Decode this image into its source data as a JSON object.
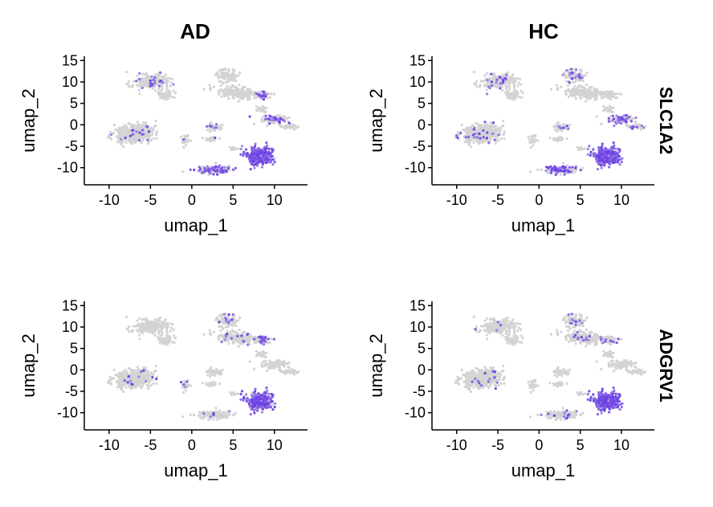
{
  "figure": {
    "columns": [
      "AD",
      "HC"
    ],
    "rows": [
      "SLC1A2",
      "ADGRV1"
    ]
  },
  "chart_data": {
    "type": "scatter",
    "xlabel": "umap_1",
    "ylabel": "umap_2",
    "xlim": [
      -13,
      14
    ],
    "ylim": [
      -14,
      16
    ],
    "xticks": [
      -10,
      -5,
      0,
      5,
      10
    ],
    "yticks": [
      -10,
      -5,
      0,
      5,
      10,
      15
    ],
    "colors": {
      "background": "#d3d3d3",
      "low": "#c4b8ea",
      "high": "#6a3ee3"
    },
    "clusters": [
      {
        "name": "c1",
        "cx": -7.0,
        "cy": -2.0,
        "sx": 2.2,
        "sy": 1.8,
        "rot": 38,
        "n": 420
      },
      {
        "name": "c2",
        "cx": -5.0,
        "cy": 10.0,
        "sx": 1.9,
        "sy": 1.6,
        "rot": 0,
        "n": 220
      },
      {
        "name": "c3",
        "cx": -3.2,
        "cy": 7.0,
        "sx": 0.9,
        "sy": 0.9,
        "rot": 0,
        "n": 60
      },
      {
        "name": "c4",
        "cx": 4.3,
        "cy": 11.5,
        "sx": 1.3,
        "sy": 1.3,
        "rot": 0,
        "n": 100
      },
      {
        "name": "c5",
        "cx": 5.5,
        "cy": 7.5,
        "sx": 2.5,
        "sy": 1.2,
        "rot": -15,
        "n": 200
      },
      {
        "name": "c6",
        "cx": 8.5,
        "cy": 7.0,
        "sx": 1.0,
        "sy": 0.8,
        "rot": 0,
        "n": 50
      },
      {
        "name": "c7",
        "cx": 10.0,
        "cy": 1.2,
        "sx": 1.6,
        "sy": 1.0,
        "rot": 0,
        "n": 90
      },
      {
        "name": "c8",
        "cx": 11.7,
        "cy": -0.5,
        "sx": 1.1,
        "sy": 0.4,
        "rot": 0,
        "n": 35
      },
      {
        "name": "c9",
        "cx": 8.5,
        "cy": 3.5,
        "sx": 0.9,
        "sy": 0.6,
        "rot": 0,
        "n": 30
      },
      {
        "name": "c10",
        "cx": 2.8,
        "cy": -0.5,
        "sx": 0.9,
        "sy": 0.8,
        "rot": 0,
        "n": 45
      },
      {
        "name": "c11",
        "cx": 2.5,
        "cy": -3.3,
        "sx": 0.7,
        "sy": 0.5,
        "rot": 0,
        "n": 25
      },
      {
        "name": "c12",
        "cx": -0.8,
        "cy": -3.5,
        "sx": 0.4,
        "sy": 1.3,
        "rot": 0,
        "n": 25
      },
      {
        "name": "c13",
        "cx": 5.0,
        "cy": -5.5,
        "sx": 0.5,
        "sy": 0.4,
        "rot": 0,
        "n": 12
      },
      {
        "name": "c14",
        "cx": 8.2,
        "cy": -7.3,
        "sx": 1.4,
        "sy": 1.9,
        "rot": 0,
        "n": 260
      },
      {
        "name": "c15",
        "cx": 2.7,
        "cy": -10.5,
        "sx": 2.0,
        "sy": 0.8,
        "rot": 0,
        "n": 130
      }
    ],
    "panels": [
      {
        "column": "AD",
        "row": "SLC1A2",
        "expression": {
          "c14": 0.92,
          "c15": 0.55,
          "c7": 0.3,
          "c6": 0.25,
          "c10": 0.12,
          "c2": 0.06,
          "c1": 0.04,
          "c12": 0.15,
          "c11": 0.12
        }
      },
      {
        "column": "HC",
        "row": "SLC1A2",
        "expression": {
          "c14": 0.96,
          "c15": 0.45,
          "c7": 0.35,
          "c8": 0.25,
          "c4": 0.18,
          "c1": 0.06,
          "c2": 0.08,
          "c10": 0.1
        }
      },
      {
        "column": "AD",
        "row": "ADGRV1",
        "expression": {
          "c14": 0.85,
          "c15": 0.03,
          "c6": 0.25,
          "c4": 0.12,
          "c5": 0.08,
          "c1": 0.02,
          "c12": 0.08
        }
      },
      {
        "column": "HC",
        "row": "ADGRV1",
        "expression": {
          "c14": 0.95,
          "c15": 0.03,
          "c6": 0.18,
          "c4": 0.1,
          "c5": 0.06,
          "c1": 0.03,
          "c2": 0.03
        }
      }
    ]
  }
}
